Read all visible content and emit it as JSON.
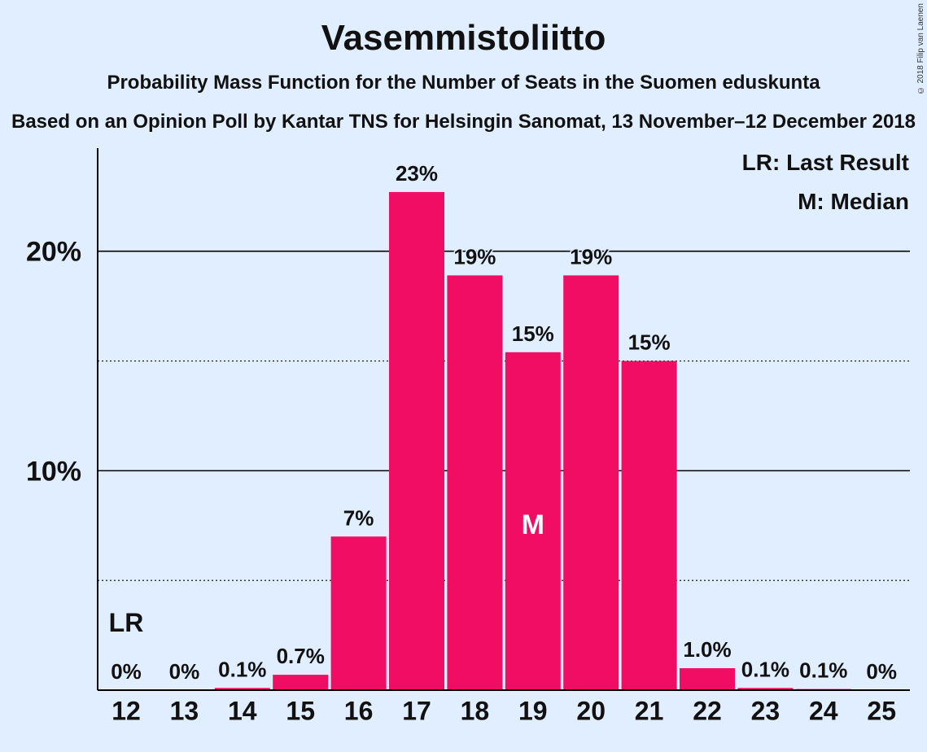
{
  "chart_data": {
    "type": "bar",
    "title": "Vasemmistoliitto",
    "subtitle": "Probability Mass Function for the Number of Seats in the Suomen eduskunta",
    "source": "Based on an Opinion Poll by Kantar TNS for Helsingin Sanomat, 13 November–12 December 2018",
    "copyright": "© 2018 Filip van Laenen",
    "categories": [
      "12",
      "13",
      "14",
      "15",
      "16",
      "17",
      "18",
      "19",
      "20",
      "21",
      "22",
      "23",
      "24",
      "25"
    ],
    "values": [
      0,
      0,
      0.1,
      0.7,
      7,
      22.7,
      18.9,
      15.4,
      18.9,
      15,
      1.0,
      0.1,
      0.05,
      0
    ],
    "value_labels": [
      "0%",
      "0%",
      "0.1%",
      "0.7%",
      "7%",
      "23%",
      "19%",
      "15%",
      "19%",
      "15%",
      "1.0%",
      "0.1%",
      "0.1%",
      "0%"
    ],
    "ylim": [
      0,
      24.7
    ],
    "yticks": [
      {
        "value": 10,
        "label": "10%"
      },
      {
        "value": 20,
        "label": "20%"
      }
    ],
    "minor_gridlines": [
      5,
      15
    ],
    "last_result": {
      "category": "12",
      "label": "LR"
    },
    "median": {
      "category": "19",
      "label": "M"
    },
    "legend": [
      "LR: Last Result",
      "M: Median"
    ],
    "legend_position": "top-right",
    "colors": {
      "bar": "#f00d63",
      "background": "#e0eeff",
      "axis": "#000000"
    }
  }
}
